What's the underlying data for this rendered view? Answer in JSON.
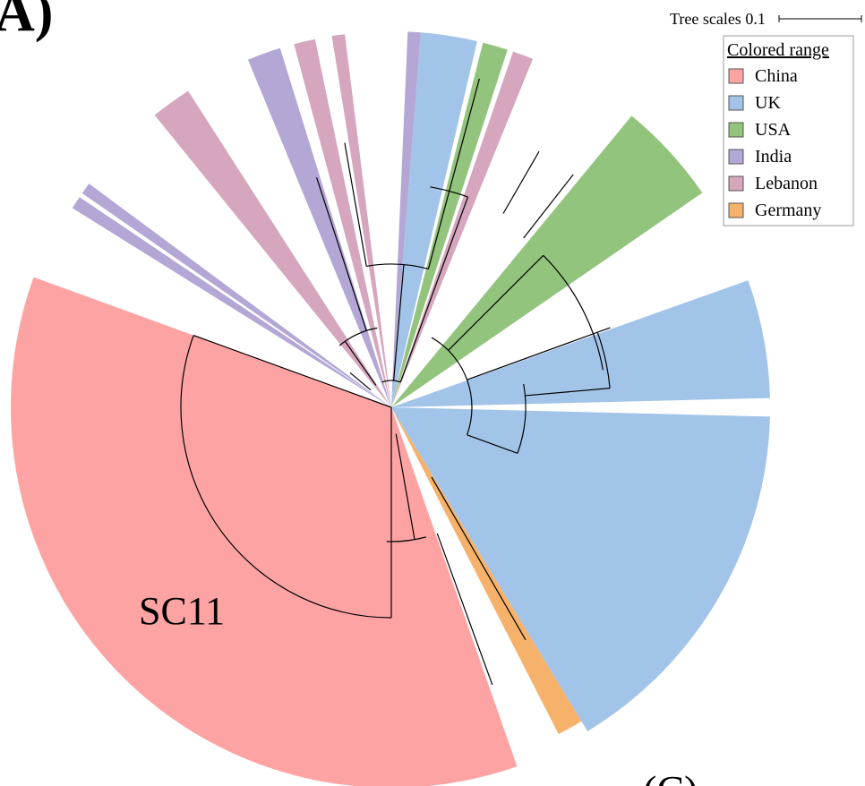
{
  "panel_label": "A)",
  "scale": {
    "label": "Tree scales 0.1"
  },
  "legend": {
    "title": "Colored range",
    "items": [
      {
        "label": "China",
        "color": "#fea3a3"
      },
      {
        "label": "UK",
        "color": "#a2c4e8"
      },
      {
        "label": "USA",
        "color": "#93c47d"
      },
      {
        "label": "India",
        "color": "#b4a7d6"
      },
      {
        "label": "Lebanon",
        "color": "#d5a6bd"
      },
      {
        "label": "Germany",
        "color": "#f6b26b"
      }
    ]
  },
  "clade_label": "SC11",
  "next_panel_label": "(C)"
}
